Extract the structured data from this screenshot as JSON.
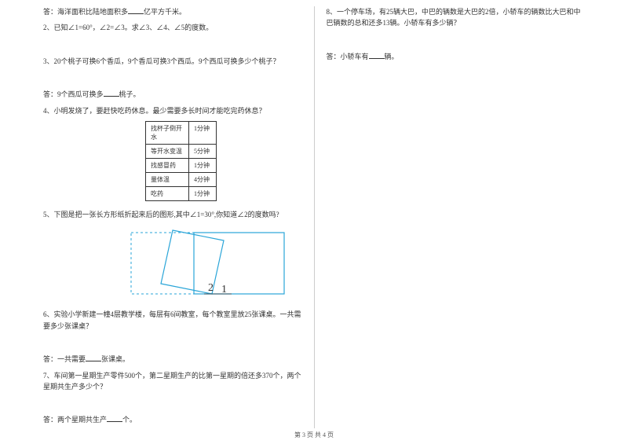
{
  "left": {
    "q1_ans": "答：海洋面积比陆地面积多____亿平方千米。",
    "q2": "2、已知∠1=60°，∠2=∠3。求∠3、∠4、∠5的度数。",
    "q3": "3、20个桃子可换6个香瓜，9个香瓜可换3个西瓜。9个西瓜可换多少个桃子？",
    "q3_ans": "答：9个西瓜可换多____桃子。",
    "q4": "4、小明发烧了，要赶快吃药休息。最少需要多长时间才能吃完药休息？",
    "table": [
      [
        "找杯子倒开水",
        "1分钟"
      ],
      [
        "等开水变温",
        "5分钟"
      ],
      [
        "找感冒药",
        "1分钟"
      ],
      [
        "量体温",
        "4分钟"
      ],
      [
        "吃药",
        "1分钟"
      ]
    ],
    "q5": "5、下图是把一张长方形纸折起来后的图形,其中∠1=30°,你知道∠2的度数吗?",
    "fold_labels": {
      "l1": "1",
      "l2": "2"
    },
    "q6": "6、实验小学新建一幢4层教学楼，每层有6间教室，每个教室里放25张课桌。一共需要多少张课桌？",
    "q6_ans": "答：一共需要____张课桌。",
    "q7": "7、车间第一星期生产零件500个，第二星期生产的比第一星期的倍还多370个，两个星期共生产多少个？",
    "q7_ans": "答：两个星期共生产____个。"
  },
  "right": {
    "q8": "8、一个停车场，有25辆大巴，中巴的辆数是大巴的2倍，小轿车的辆数比大巴和中巴辆数的总和还多13辆。小轿车有多少辆？",
    "q8_ans": "答：小轿车有____辆。"
  },
  "footer": "第 3 页 共 4 页",
  "colors": {
    "fold_dash": "#2aa5d8",
    "fold_solid": "#2aa5d8",
    "text": "#333333"
  }
}
